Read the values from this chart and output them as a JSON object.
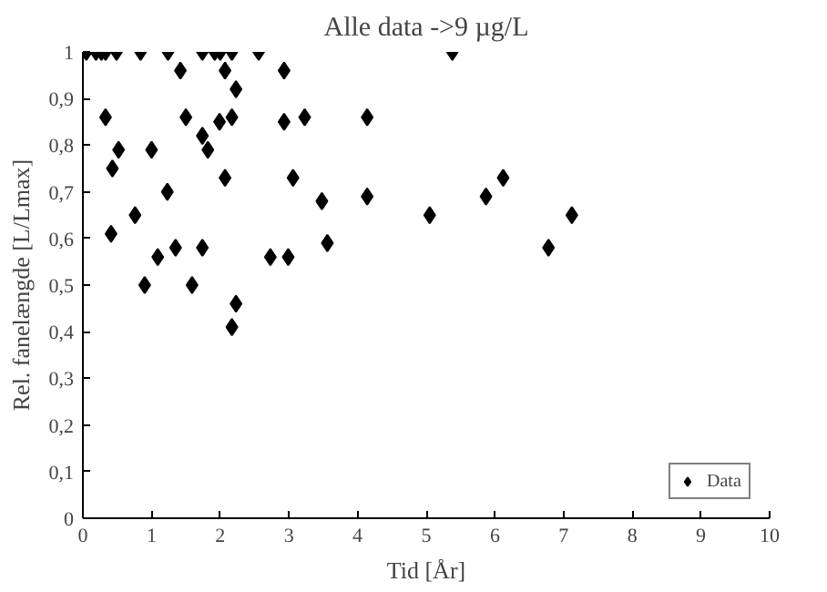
{
  "chart_data": {
    "type": "scatter",
    "title": "Alle data ->9 µg/L",
    "xlabel": "Tid [År]",
    "ylabel": "Rel. fanelængde [L/Lmax]",
    "series": [
      {
        "name": "Data",
        "color": "#000000",
        "x": [
          0.05,
          0.11,
          0.19,
          0.27,
          0.33,
          0.49,
          0.84,
          1.24,
          1.74,
          1.92,
          2.0,
          2.17,
          2.56,
          5.38,
          1.42,
          2.07,
          2.93,
          2.23,
          0.33,
          1.5,
          1.99,
          2.17,
          2.93,
          3.23,
          1.74,
          0.52,
          1.0,
          1.82,
          0.43,
          2.07,
          3.06,
          1.23,
          3.48,
          0.76,
          0.41,
          3.56,
          1.09,
          1.35,
          1.74,
          2.73,
          2.99,
          0.9,
          1.59,
          2.17,
          2.23,
          4.14,
          4.14,
          5.05,
          5.87,
          6.12,
          6.78,
          7.12
        ],
        "values": [
          1,
          null,
          1,
          1,
          1,
          1,
          1,
          1,
          1,
          1,
          1,
          1,
          1,
          1,
          0.96,
          0.96,
          0.96,
          0.92,
          0.86,
          0.86,
          0.85,
          0.86,
          0.85,
          0.86,
          0.82,
          0.79,
          0.79,
          0.79,
          0.75,
          0.73,
          0.73,
          0.7,
          0.68,
          0.65,
          0.61,
          0.59,
          0.56,
          0.58,
          0.58,
          0.56,
          0.56,
          0.5,
          0.5,
          0.41,
          0.46,
          0.86,
          0.69,
          0.65,
          0.69,
          0.73,
          0.58,
          0.65
        ]
      }
    ],
    "xlim": [
      0,
      10
    ],
    "ylim": [
      0,
      1
    ],
    "xticks": [
      0,
      1,
      2,
      3,
      4,
      5,
      6,
      7,
      8,
      9,
      10
    ],
    "yticks": [
      0,
      {
        "value": 0.1,
        "label": "0,1"
      },
      {
        "value": 0.2,
        "label": "0,2"
      },
      {
        "value": 0.3,
        "label": "0,3"
      },
      {
        "value": 0.4,
        "label": "0,4"
      },
      {
        "value": 0.5,
        "label": "0,5"
      },
      {
        "value": 0.6,
        "label": "0,6"
      },
      {
        "value": 0.7,
        "label": "0,7"
      },
      {
        "value": 0.8,
        "label": "0,8"
      },
      {
        "value": 0.9,
        "label": "0,9"
      },
      1
    ],
    "marker": "diamond",
    "grid": false,
    "legend": "bottom right"
  }
}
